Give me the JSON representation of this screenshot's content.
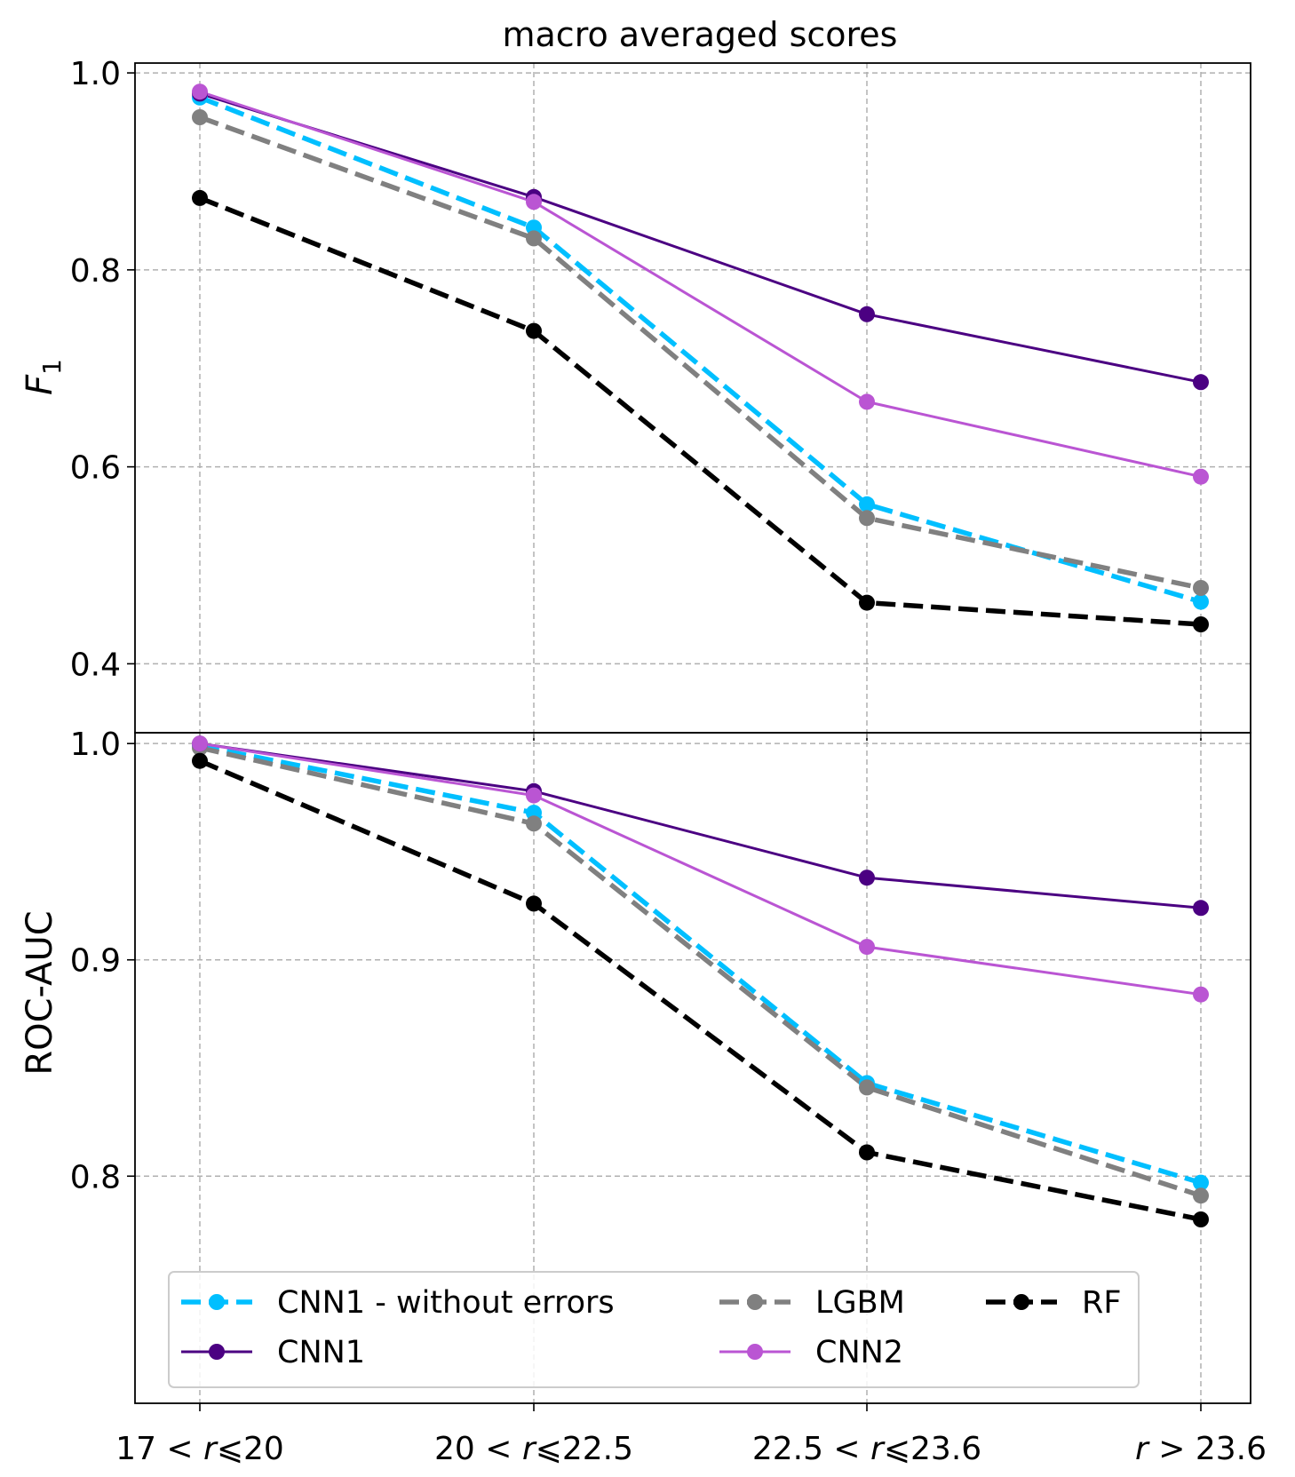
{
  "chart_data": [
    {
      "type": "line",
      "title": "macro averaged scores",
      "ylabel": "F1",
      "ylabel_main": "F",
      "ylabel_sub": "1",
      "ylim": [
        0.33,
        1.01
      ],
      "yticks": [
        0.4,
        0.6,
        0.8,
        1.0
      ],
      "ytick_labels": [
        "0.4",
        "0.6",
        "0.8",
        "1.0"
      ],
      "grid": true,
      "series": [
        {
          "name": "CNN1 - without errors",
          "key": "cnn1_noerr",
          "values": [
            0.975,
            0.843,
            0.562,
            0.463
          ]
        },
        {
          "name": "LGBM",
          "key": "lgbm",
          "values": [
            0.955,
            0.832,
            0.548,
            0.477
          ]
        },
        {
          "name": "RF",
          "key": "rf",
          "values": [
            0.873,
            0.738,
            0.462,
            0.44
          ]
        },
        {
          "name": "CNN1",
          "key": "cnn1",
          "values": [
            0.979,
            0.874,
            0.755,
            0.686
          ]
        },
        {
          "name": "CNN2",
          "key": "cnn2",
          "values": [
            0.981,
            0.869,
            0.666,
            0.59
          ]
        }
      ]
    },
    {
      "type": "line",
      "title": "",
      "ylabel": "ROC-AUC",
      "ylim": [
        0.695,
        1.005
      ],
      "yticks": [
        0.8,
        0.9,
        1.0
      ],
      "ytick_labels": [
        "0.8",
        "0.9",
        "1.0"
      ],
      "grid": true,
      "legend_position": "lower-center",
      "series": [
        {
          "name": "CNN1 - without errors",
          "key": "cnn1_noerr",
          "values": [
            0.999,
            0.968,
            0.843,
            0.797
          ]
        },
        {
          "name": "LGBM",
          "key": "lgbm",
          "values": [
            0.998,
            0.963,
            0.841,
            0.791
          ]
        },
        {
          "name": "RF",
          "key": "rf",
          "values": [
            0.992,
            0.926,
            0.811,
            0.78
          ]
        },
        {
          "name": "CNN1",
          "key": "cnn1",
          "values": [
            1.0,
            0.978,
            0.938,
            0.924
          ]
        },
        {
          "name": "CNN2",
          "key": "cnn2",
          "values": [
            1.0,
            0.976,
            0.906,
            0.884
          ]
        }
      ]
    }
  ],
  "x_categories": [
    {
      "pre": "17 < ",
      "r": "r",
      "post": "⩽20"
    },
    {
      "pre": "20 < ",
      "r": "r",
      "post": "⩽22.5"
    },
    {
      "pre": "22.5 < ",
      "r": "r",
      "post": "⩽23.6"
    },
    {
      "pre": "",
      "r": "r",
      "post": " > 23.6"
    }
  ],
  "styles": {
    "cnn1_noerr": {
      "color": "#00bfff",
      "dash": "dashed",
      "bold": true
    },
    "lgbm": {
      "color": "#808080",
      "dash": "dashed",
      "bold": true
    },
    "rf": {
      "color": "#000000",
      "dash": "dashed",
      "bold": true
    },
    "cnn1": {
      "color": "#4b0082",
      "dash": "solid",
      "bold": false
    },
    "cnn2": {
      "color": "#ba55d3",
      "dash": "solid",
      "bold": false
    }
  },
  "legend": {
    "items": [
      {
        "label": "CNN1 - without errors",
        "key": "cnn1_noerr"
      },
      {
        "label": "LGBM",
        "key": "lgbm"
      },
      {
        "label": "RF",
        "key": "rf"
      },
      {
        "label": "CNN1",
        "key": "cnn1"
      },
      {
        "label": "CNN2",
        "key": "cnn2"
      }
    ]
  }
}
